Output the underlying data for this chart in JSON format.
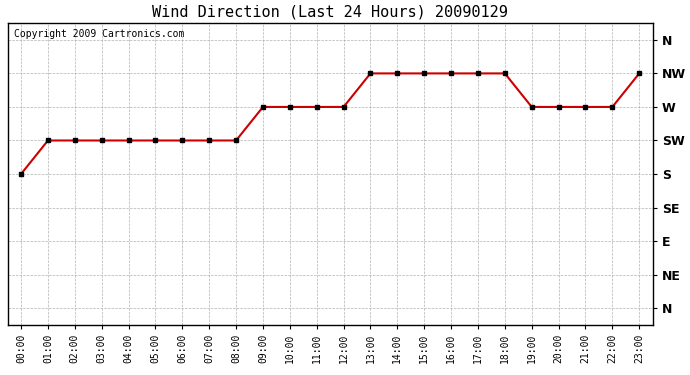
{
  "title": "Wind Direction (Last 24 Hours) 20090129",
  "copyright_text": "Copyright 2009 Cartronics.com",
  "hours": [
    0,
    1,
    2,
    3,
    4,
    5,
    6,
    7,
    8,
    9,
    10,
    11,
    12,
    13,
    14,
    15,
    16,
    17,
    18,
    19,
    20,
    21,
    22,
    23
  ],
  "hour_labels": [
    "00:00",
    "01:00",
    "02:00",
    "03:00",
    "04:00",
    "05:00",
    "06:00",
    "07:00",
    "08:00",
    "09:00",
    "10:00",
    "11:00",
    "12:00",
    "13:00",
    "14:00",
    "15:00",
    "16:00",
    "17:00",
    "18:00",
    "19:00",
    "20:00",
    "21:00",
    "22:00",
    "23:00"
  ],
  "wind_values": [
    5,
    4,
    4,
    4,
    4,
    4,
    4,
    4,
    4,
    3,
    3,
    3,
    3,
    2,
    2,
    2,
    2,
    2,
    2,
    3,
    3,
    3,
    3,
    2
  ],
  "ytick_labels": [
    "N",
    "NW",
    "W",
    "SW",
    "S",
    "SE",
    "E",
    "NE",
    "N"
  ],
  "ytick_values": [
    1,
    2,
    3,
    4,
    5,
    6,
    7,
    8,
    9
  ],
  "line_color": "#cc0000",
  "marker": "s",
  "marker_color": "#000000",
  "marker_size": 3,
  "background_color": "#ffffff",
  "plot_bg_color": "#ffffff",
  "grid_color": "#aaaaaa",
  "title_fontsize": 11,
  "ylim": [
    0.5,
    9.5
  ],
  "xlim": [
    -0.5,
    23.5
  ]
}
